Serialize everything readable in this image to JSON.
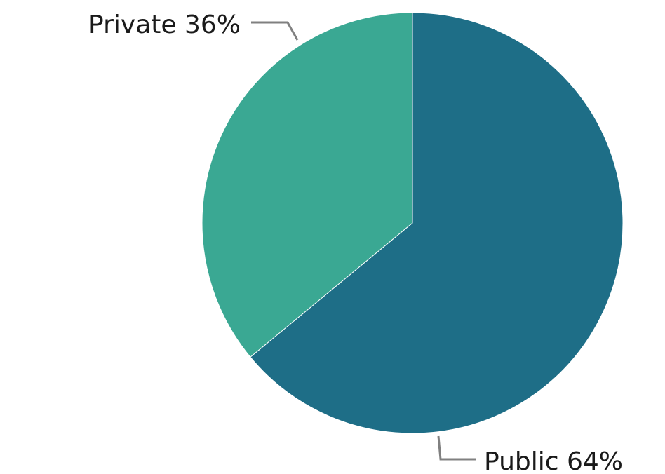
{
  "chart_data": {
    "type": "pie",
    "title": "",
    "slices": [
      {
        "label": "Public",
        "value": 64,
        "display": "Public 64%",
        "color": "#1e6e87"
      },
      {
        "label": "Private",
        "value": 36,
        "display": "Private 36%",
        "color": "#3aa893"
      }
    ],
    "start": "12 o'clock",
    "direction": "clockwise",
    "legend": "none"
  }
}
